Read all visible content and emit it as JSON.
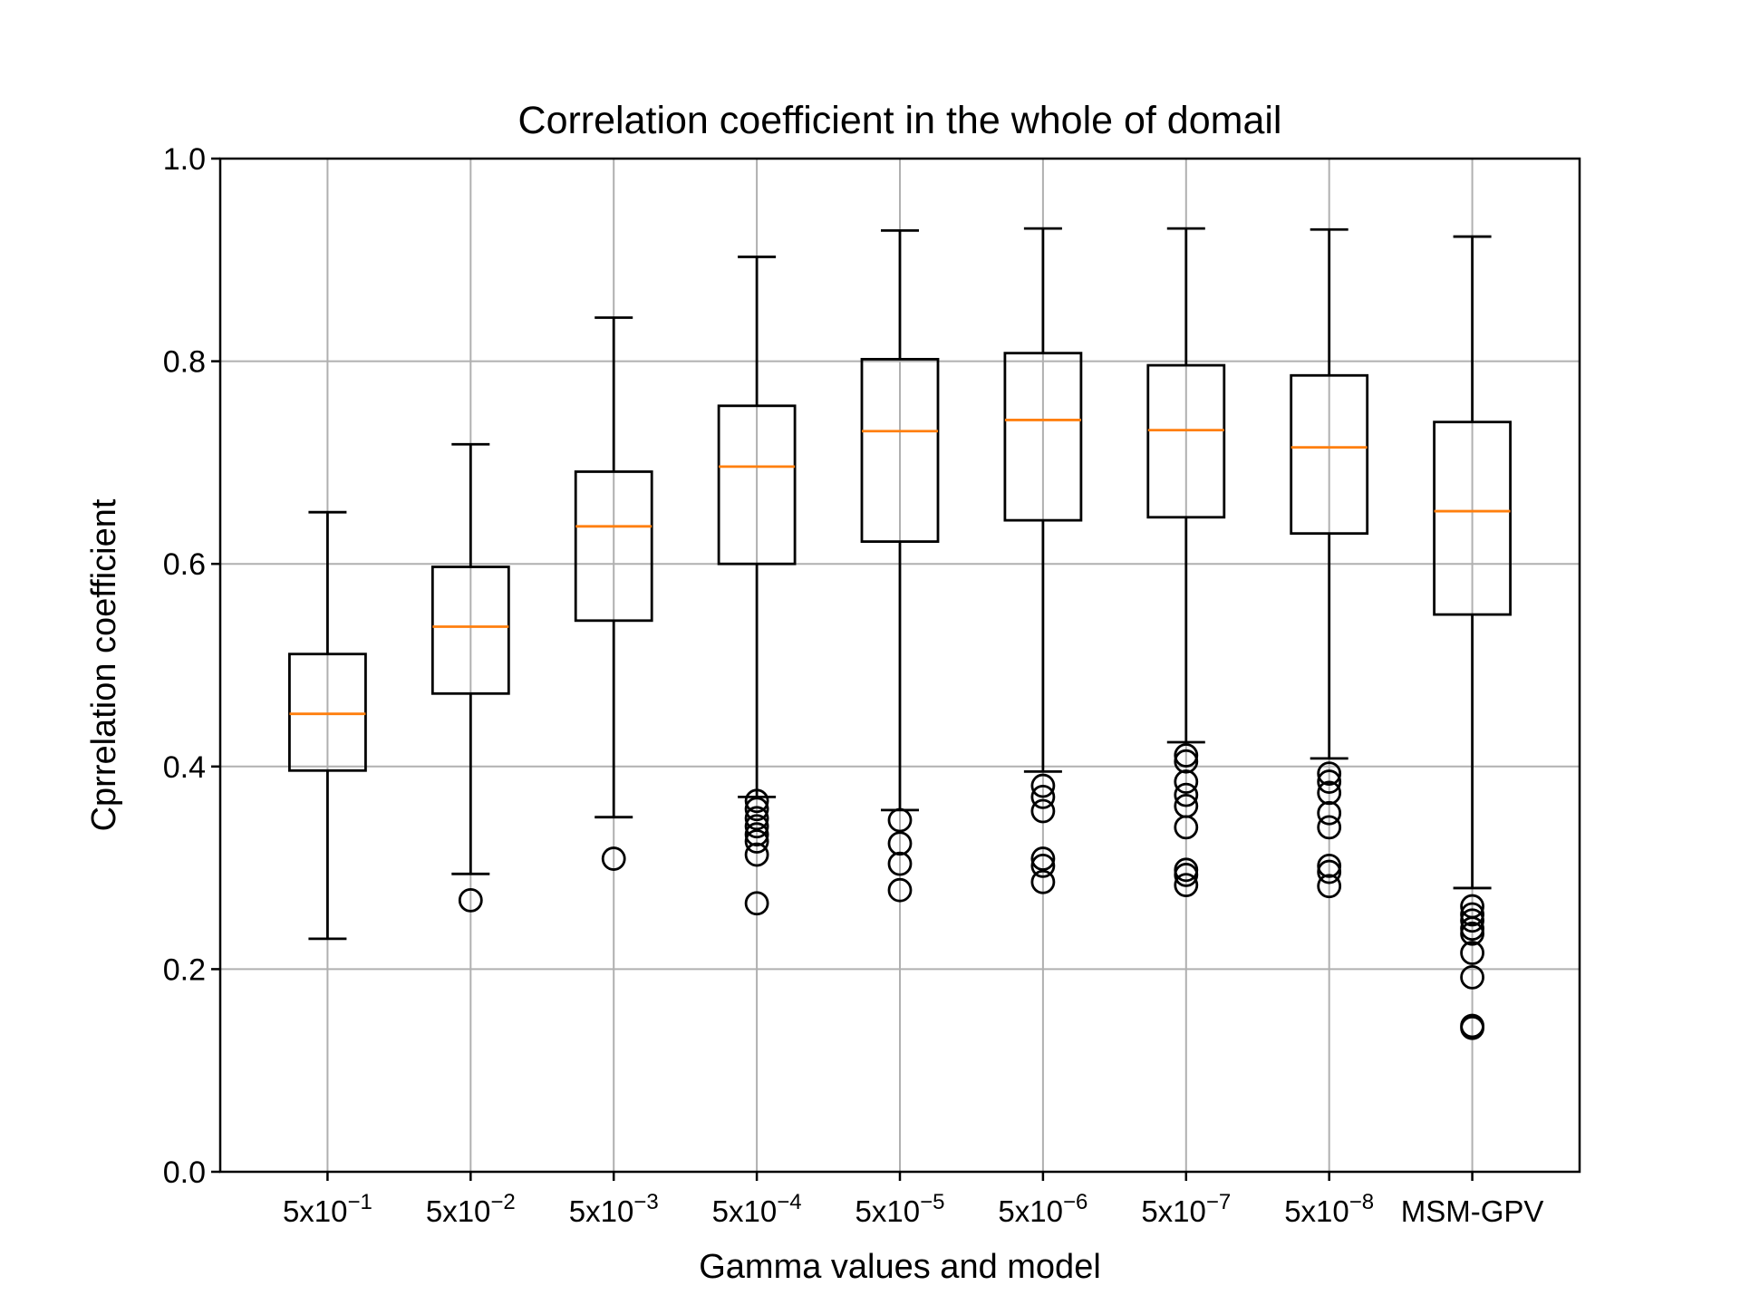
{
  "chart_data": {
    "type": "box",
    "title": "Correlation coefficient in the whole of domail",
    "xlabel": "Gamma values and model",
    "ylabel": "Cprrelation coefficient",
    "ylim": [
      0.0,
      1.0
    ],
    "yticks": [
      "0.0",
      "0.2",
      "0.4",
      "0.6",
      "0.8",
      "1.0"
    ],
    "grid": true,
    "categories": [
      {
        "base": "5x10",
        "exp": "−1"
      },
      {
        "base": "5x10",
        "exp": "−2"
      },
      {
        "base": "5x10",
        "exp": "−3"
      },
      {
        "base": "5x10",
        "exp": "−4"
      },
      {
        "base": "5x10",
        "exp": "−5"
      },
      {
        "base": "5x10",
        "exp": "−6"
      },
      {
        "base": "5x10",
        "exp": "−7"
      },
      {
        "base": "5x10",
        "exp": "−8"
      },
      {
        "base": "MSM-GPV",
        "exp": ""
      }
    ],
    "boxes": [
      {
        "whislo": 0.23,
        "q1": 0.396,
        "med": 0.452,
        "q3": 0.511,
        "whishi": 0.651,
        "fliers": []
      },
      {
        "whislo": 0.294,
        "q1": 0.472,
        "med": 0.538,
        "q3": 0.597,
        "whishi": 0.718,
        "fliers": [
          0.268
        ]
      },
      {
        "whislo": 0.35,
        "q1": 0.544,
        "med": 0.637,
        "q3": 0.691,
        "whishi": 0.843,
        "fliers": [
          0.309
        ]
      },
      {
        "whislo": 0.37,
        "q1": 0.6,
        "med": 0.696,
        "q3": 0.756,
        "whishi": 0.903,
        "fliers": [
          0.366,
          0.358,
          0.349,
          0.341,
          0.333,
          0.326,
          0.313,
          0.265
        ]
      },
      {
        "whislo": 0.357,
        "q1": 0.622,
        "med": 0.731,
        "q3": 0.802,
        "whishi": 0.929,
        "fliers": [
          0.347,
          0.324,
          0.304,
          0.278
        ]
      },
      {
        "whislo": 0.395,
        "q1": 0.643,
        "med": 0.742,
        "q3": 0.808,
        "whishi": 0.931,
        "fliers": [
          0.381,
          0.37,
          0.356,
          0.309,
          0.302,
          0.286
        ]
      },
      {
        "whislo": 0.424,
        "q1": 0.646,
        "med": 0.732,
        "q3": 0.796,
        "whishi": 0.931,
        "fliers": [
          0.411,
          0.405,
          0.385,
          0.372,
          0.361,
          0.34,
          0.298,
          0.293,
          0.283
        ]
      },
      {
        "whislo": 0.408,
        "q1": 0.63,
        "med": 0.715,
        "q3": 0.786,
        "whishi": 0.93,
        "fliers": [
          0.393,
          0.385,
          0.374,
          0.354,
          0.34,
          0.302,
          0.296,
          0.282
        ]
      },
      {
        "whislo": 0.28,
        "q1": 0.55,
        "med": 0.652,
        "q3": 0.74,
        "whishi": 0.923,
        "fliers": [
          0.262,
          0.254,
          0.248,
          0.24,
          0.235,
          0.216,
          0.192,
          0.144,
          0.142
        ]
      }
    ]
  }
}
